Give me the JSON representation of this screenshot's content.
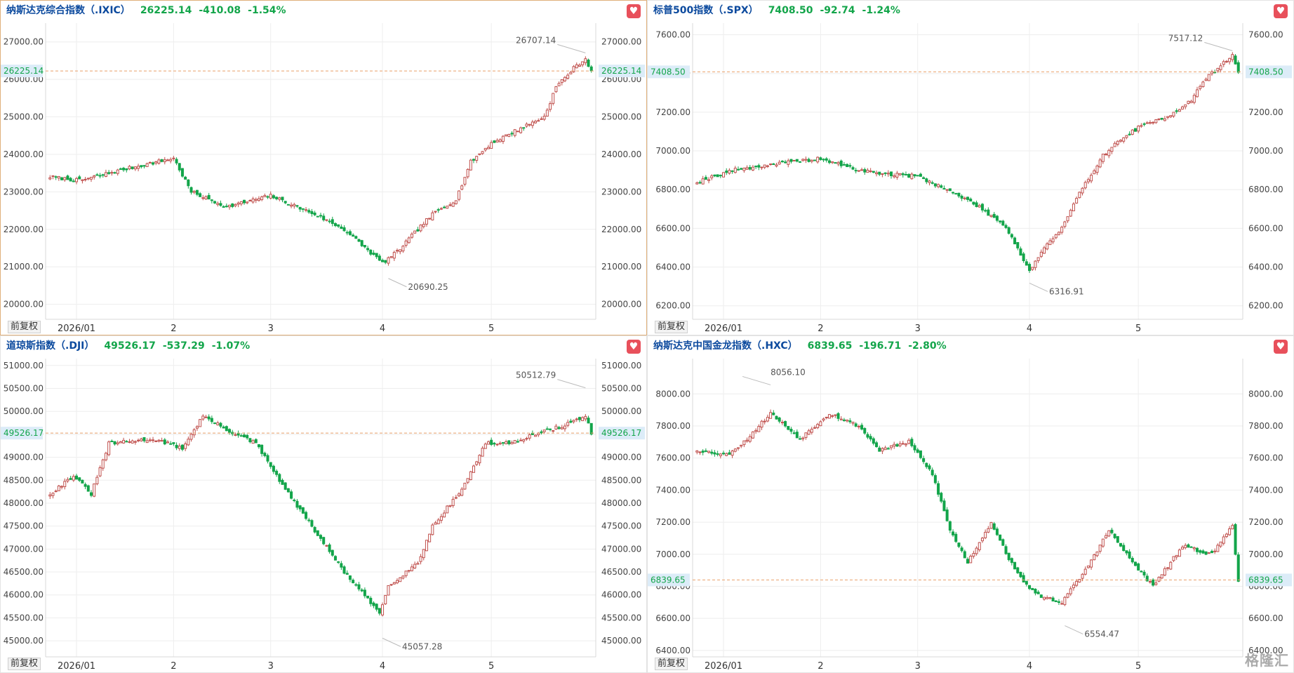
{
  "watermark": "格隆汇",
  "chart_data": [
    {
      "type": "candlestick",
      "name": "纳斯达克综合指数（.IXIC）",
      "price": "26225.14",
      "change": "-410.08",
      "change_pct": "-1.54%",
      "adjust_label": "前复权",
      "active": true,
      "x_ticks": [
        "2026/01",
        "2",
        "3",
        "4",
        "5"
      ],
      "x_tick_index": [
        9,
        42,
        75,
        113,
        150
      ],
      "y_ticks": [
        "20000.00",
        "21000.00",
        "22000.00",
        "23000.00",
        "24000.00",
        "25000.00",
        "26000.00",
        "27000.00"
      ],
      "ylim": [
        19600,
        27500
      ],
      "last_label": "26225.14",
      "high_label": "26707.14",
      "low_label": "20690.25",
      "high_value": 26707.14,
      "low_value": 20690.25,
      "anchors": [
        [
          0,
          23400
        ],
        [
          10,
          23300
        ],
        [
          25,
          23600
        ],
        [
          42,
          23900
        ],
        [
          48,
          23000
        ],
        [
          60,
          22600
        ],
        [
          75,
          22900
        ],
        [
          90,
          22400
        ],
        [
          100,
          22000
        ],
        [
          113,
          21100
        ],
        [
          118,
          21400
        ],
        [
          125,
          22000
        ],
        [
          130,
          22400
        ],
        [
          138,
          22800
        ],
        [
          143,
          23800
        ],
        [
          150,
          24300
        ],
        [
          155,
          24500
        ],
        [
          160,
          24700
        ],
        [
          168,
          25000
        ],
        [
          172,
          25800
        ],
        [
          178,
          26300
        ],
        [
          182,
          26550
        ],
        [
          184,
          26225.14
        ]
      ],
      "seed": 7
    },
    {
      "type": "candlestick",
      "name": "标普500指数（.SPX）",
      "price": "7408.50",
      "change": "-92.74",
      "change_pct": "-1.24%",
      "adjust_label": "前复权",
      "active": false,
      "x_ticks": [
        "2026/01",
        "2",
        "3",
        "4",
        "5"
      ],
      "x_tick_index": [
        9,
        42,
        75,
        113,
        150
      ],
      "y_ticks": [
        "6200.00",
        "6400.00",
        "6600.00",
        "6800.00",
        "7000.00",
        "7200.00",
        "7400.00",
        "7600.00"
      ],
      "ylim": [
        6130,
        7660
      ],
      "last_label": "7408.50",
      "high_label": "7517.12",
      "low_label": "6316.91",
      "high_value": 7517.12,
      "low_value": 6316.91,
      "anchors": [
        [
          0,
          6840
        ],
        [
          12,
          6900
        ],
        [
          25,
          6930
        ],
        [
          42,
          6960
        ],
        [
          55,
          6900
        ],
        [
          65,
          6880
        ],
        [
          75,
          6870
        ],
        [
          85,
          6800
        ],
        [
          95,
          6720
        ],
        [
          105,
          6610
        ],
        [
          113,
          6380
        ],
        [
          118,
          6500
        ],
        [
          124,
          6600
        ],
        [
          130,
          6780
        ],
        [
          138,
          6980
        ],
        [
          145,
          7070
        ],
        [
          150,
          7120
        ],
        [
          160,
          7180
        ],
        [
          168,
          7260
        ],
        [
          172,
          7360
        ],
        [
          180,
          7470
        ],
        [
          182,
          7490
        ],
        [
          184,
          7408.5
        ]
      ],
      "seed": 19
    },
    {
      "type": "candlestick",
      "name": "道琼斯指数（.DJI）",
      "price": "49526.17",
      "change": "-537.29",
      "change_pct": "-1.07%",
      "adjust_label": "前复权",
      "active": false,
      "x_ticks": [
        "2026/01",
        "2",
        "3",
        "4",
        "5"
      ],
      "x_tick_index": [
        9,
        42,
        75,
        113,
        150
      ],
      "y_ticks": [
        "45000.00",
        "45500.00",
        "46000.00",
        "46500.00",
        "47000.00",
        "47500.00",
        "48000.00",
        "48500.00",
        "49000.00",
        "49500.00",
        "50000.00",
        "50500.00",
        "51000.00"
      ],
      "ylim": [
        44650,
        51150
      ],
      "last_label": "49526.17",
      "high_label": "50512.79",
      "low_label": "45057.28",
      "high_value": 50512.79,
      "low_value": 45057.28,
      "anchors": [
        [
          0,
          48200
        ],
        [
          8,
          48600
        ],
        [
          14,
          48200
        ],
        [
          20,
          49300
        ],
        [
          35,
          49400
        ],
        [
          45,
          49200
        ],
        [
          52,
          49900
        ],
        [
          60,
          49600
        ],
        [
          70,
          49300
        ],
        [
          80,
          48300
        ],
        [
          90,
          47400
        ],
        [
          100,
          46500
        ],
        [
          112,
          45600
        ],
        [
          115,
          46200
        ],
        [
          125,
          46700
        ],
        [
          130,
          47500
        ],
        [
          140,
          48300
        ],
        [
          148,
          49300
        ],
        [
          155,
          49300
        ],
        [
          165,
          49500
        ],
        [
          175,
          49700
        ],
        [
          182,
          49900
        ],
        [
          184,
          49526.17
        ]
      ],
      "seed": 31
    },
    {
      "type": "candlestick",
      "name": "纳斯达克中国金龙指数（.HXC）",
      "price": "6839.65",
      "change": "-196.71",
      "change_pct": "-2.80%",
      "adjust_label": "前复权",
      "active": false,
      "x_ticks": [
        "2026/01",
        "2",
        "3",
        "4",
        "5"
      ],
      "x_tick_index": [
        9,
        42,
        75,
        113,
        150
      ],
      "y_ticks": [
        "6400.00",
        "6600.00",
        "6800.00",
        "7000.00",
        "7200.00",
        "7400.00",
        "7600.00",
        "7800.00",
        "8000.00"
      ],
      "ylim": [
        6360,
        8220
      ],
      "last_label": "6839.65",
      "high_label": "8056.10",
      "low_label": "6554.47",
      "high_value": 8056.1,
      "low_value": 6554.47,
      "anchors": [
        [
          0,
          7650
        ],
        [
          10,
          7620
        ],
        [
          16,
          7700
        ],
        [
          25,
          7880
        ],
        [
          35,
          7720
        ],
        [
          45,
          7880
        ],
        [
          55,
          7800
        ],
        [
          62,
          7650
        ],
        [
          72,
          7700
        ],
        [
          80,
          7500
        ],
        [
          86,
          7150
        ],
        [
          92,
          6950
        ],
        [
          100,
          7200
        ],
        [
          108,
          6900
        ],
        [
          115,
          6750
        ],
        [
          124,
          6700
        ],
        [
          132,
          6900
        ],
        [
          140,
          7150
        ],
        [
          148,
          6950
        ],
        [
          155,
          6800
        ],
        [
          165,
          7050
        ],
        [
          175,
          7000
        ],
        [
          182,
          7180
        ],
        [
          184,
          6839.65
        ]
      ],
      "seed": 53
    }
  ]
}
